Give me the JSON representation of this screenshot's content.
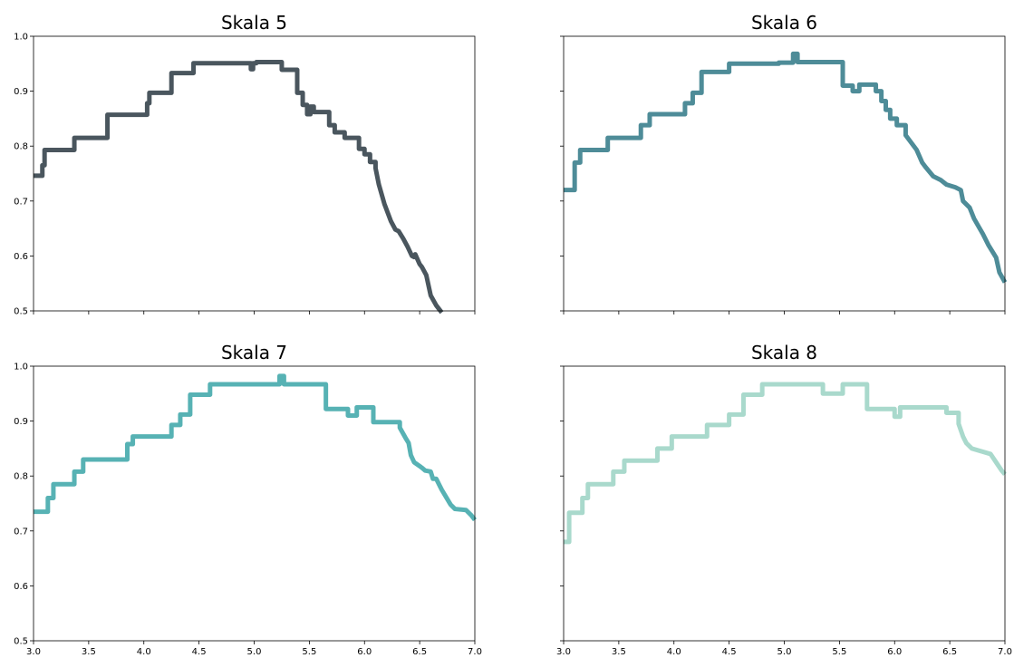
{
  "chart_data": [
    {
      "type": "line",
      "title": "Skala 5",
      "xlim": [
        3.0,
        7.0
      ],
      "ylim": [
        0.5,
        1.0
      ],
      "xticks": [
        "3.0",
        "3.5",
        "4.0",
        "4.5",
        "5.0",
        "5.5",
        "6.0",
        "6.5",
        "7.0"
      ],
      "yticks": [
        "0.5",
        "0.6",
        "0.7",
        "0.8",
        "0.9",
        "1.0"
      ],
      "show_xtick_labels": false,
      "show_ytick_labels": true,
      "color": "#4a565e",
      "series": [
        {
          "x": [
            3.0,
            3.08,
            3.08,
            3.1,
            3.1,
            3.37,
            3.37,
            3.67,
            3.67,
            4.03,
            4.03,
            4.05,
            4.05,
            4.25,
            4.25,
            4.45,
            4.45,
            4.97,
            4.97,
            4.99,
            4.99,
            5.02,
            5.02,
            5.25,
            5.25,
            5.39,
            5.39,
            5.44,
            5.44,
            5.48,
            5.48,
            5.51,
            5.51,
            5.54,
            5.54,
            5.68,
            5.68,
            5.73,
            5.73,
            5.82,
            5.82,
            5.95,
            5.95,
            6.0,
            6.0,
            6.05,
            6.05,
            6.1,
            6.1,
            6.13,
            6.18,
            6.24,
            6.28,
            6.31,
            6.35,
            6.39,
            6.43,
            6.45,
            6.46,
            6.5,
            6.52,
            6.56,
            6.6,
            6.65,
            6.7
          ],
          "y": [
            0.746,
            0.746,
            0.765,
            0.765,
            0.793,
            0.793,
            0.815,
            0.815,
            0.857,
            0.857,
            0.878,
            0.878,
            0.897,
            0.897,
            0.933,
            0.933,
            0.951,
            0.951,
            0.94,
            0.94,
            0.951,
            0.951,
            0.953,
            0.953,
            0.939,
            0.939,
            0.897,
            0.897,
            0.875,
            0.875,
            0.858,
            0.858,
            0.872,
            0.872,
            0.862,
            0.862,
            0.838,
            0.838,
            0.825,
            0.825,
            0.815,
            0.815,
            0.795,
            0.795,
            0.785,
            0.785,
            0.771,
            0.771,
            0.76,
            0.73,
            0.695,
            0.663,
            0.648,
            0.645,
            0.632,
            0.617,
            0.6,
            0.598,
            0.603,
            0.585,
            0.58,
            0.565,
            0.528,
            0.51,
            0.497
          ]
        }
      ]
    },
    {
      "type": "line",
      "title": "Skala 6",
      "xlim": [
        3.0,
        7.0
      ],
      "ylim": [
        0.5,
        1.0
      ],
      "xticks": [
        "3.0",
        "3.5",
        "4.0",
        "4.5",
        "5.0",
        "5.5",
        "6.0",
        "6.5",
        "7.0"
      ],
      "yticks": [
        "0.5",
        "0.6",
        "0.7",
        "0.8",
        "0.9",
        "1.0"
      ],
      "show_xtick_labels": false,
      "show_ytick_labels": false,
      "color": "#4e8c98",
      "series": [
        {
          "x": [
            3.0,
            3.1,
            3.1,
            3.15,
            3.15,
            3.4,
            3.4,
            3.7,
            3.7,
            3.78,
            3.78,
            4.1,
            4.1,
            4.17,
            4.17,
            4.25,
            4.25,
            4.5,
            4.5,
            4.95,
            4.95,
            5.08,
            5.08,
            5.12,
            5.12,
            5.53,
            5.53,
            5.62,
            5.62,
            5.68,
            5.68,
            5.83,
            5.83,
            5.88,
            5.88,
            5.92,
            5.92,
            5.96,
            5.96,
            6.02,
            6.02,
            6.1,
            6.1,
            6.2,
            6.25,
            6.28,
            6.35,
            6.42,
            6.47,
            6.55,
            6.6,
            6.62,
            6.68,
            6.72,
            6.8,
            6.85,
            6.92,
            6.95,
            7.0
          ],
          "y": [
            0.72,
            0.72,
            0.77,
            0.77,
            0.793,
            0.793,
            0.815,
            0.815,
            0.838,
            0.838,
            0.858,
            0.858,
            0.878,
            0.878,
            0.897,
            0.897,
            0.935,
            0.935,
            0.95,
            0.95,
            0.952,
            0.952,
            0.968,
            0.968,
            0.953,
            0.953,
            0.91,
            0.91,
            0.9,
            0.9,
            0.912,
            0.912,
            0.9,
            0.9,
            0.882,
            0.882,
            0.866,
            0.866,
            0.85,
            0.85,
            0.838,
            0.838,
            0.82,
            0.793,
            0.77,
            0.762,
            0.745,
            0.738,
            0.73,
            0.725,
            0.72,
            0.7,
            0.688,
            0.668,
            0.64,
            0.62,
            0.597,
            0.57,
            0.552
          ]
        }
      ]
    },
    {
      "type": "line",
      "title": "Skala 7",
      "xlim": [
        3.0,
        7.0
      ],
      "ylim": [
        0.5,
        1.0
      ],
      "xticks": [
        "3.0",
        "3.5",
        "4.0",
        "4.5",
        "5.0",
        "5.5",
        "6.0",
        "6.5",
        "7.0"
      ],
      "yticks": [
        "0.5",
        "0.6",
        "0.7",
        "0.8",
        "0.9",
        "1.0"
      ],
      "show_xtick_labels": true,
      "show_ytick_labels": true,
      "color": "#57b2b4",
      "series": [
        {
          "x": [
            3.0,
            3.13,
            3.13,
            3.18,
            3.18,
            3.37,
            3.37,
            3.45,
            3.45,
            3.85,
            3.85,
            3.9,
            3.9,
            4.25,
            4.25,
            4.33,
            4.33,
            4.42,
            4.42,
            4.6,
            4.6,
            5.23,
            5.23,
            5.27,
            5.27,
            5.65,
            5.65,
            5.85,
            5.85,
            5.93,
            5.93,
            6.08,
            6.08,
            6.32,
            6.32,
            6.37,
            6.4,
            6.42,
            6.45,
            6.5,
            6.52,
            6.55,
            6.6,
            6.62,
            6.65,
            6.7,
            6.78,
            6.82,
            6.92,
            6.97,
            7.0
          ],
          "y": [
            0.735,
            0.735,
            0.76,
            0.76,
            0.785,
            0.785,
            0.808,
            0.808,
            0.83,
            0.83,
            0.858,
            0.858,
            0.872,
            0.872,
            0.893,
            0.893,
            0.912,
            0.912,
            0.948,
            0.948,
            0.967,
            0.967,
            0.982,
            0.982,
            0.967,
            0.967,
            0.922,
            0.922,
            0.91,
            0.91,
            0.925,
            0.925,
            0.898,
            0.898,
            0.888,
            0.87,
            0.86,
            0.838,
            0.825,
            0.818,
            0.815,
            0.81,
            0.808,
            0.795,
            0.795,
            0.775,
            0.748,
            0.74,
            0.738,
            0.728,
            0.72
          ]
        }
      ]
    },
    {
      "type": "line",
      "title": "Skala 8",
      "xlim": [
        3.0,
        7.0
      ],
      "ylim": [
        0.5,
        1.0
      ],
      "xticks": [
        "3.0",
        "3.5",
        "4.0",
        "4.5",
        "5.0",
        "5.5",
        "6.0",
        "6.5",
        "7.0"
      ],
      "yticks": [
        "0.5",
        "0.6",
        "0.7",
        "0.8",
        "0.9",
        "1.0"
      ],
      "show_xtick_labels": true,
      "show_ytick_labels": false,
      "color": "#a9d9cc",
      "series": [
        {
          "x": [
            3.0,
            3.05,
            3.05,
            3.17,
            3.17,
            3.22,
            3.22,
            3.45,
            3.45,
            3.55,
            3.55,
            3.85,
            3.85,
            3.98,
            3.98,
            4.3,
            4.3,
            4.5,
            4.5,
            4.63,
            4.63,
            4.8,
            4.8,
            5.35,
            5.35,
            5.53,
            5.53,
            5.75,
            5.75,
            6.0,
            6.0,
            6.05,
            6.05,
            6.47,
            6.47,
            6.58,
            6.58,
            6.62,
            6.65,
            6.7,
            6.7,
            6.87,
            6.92,
            6.97,
            7.0
          ],
          "y": [
            0.68,
            0.68,
            0.733,
            0.733,
            0.76,
            0.76,
            0.785,
            0.785,
            0.808,
            0.808,
            0.828,
            0.828,
            0.85,
            0.85,
            0.872,
            0.872,
            0.893,
            0.893,
            0.912,
            0.912,
            0.948,
            0.948,
            0.967,
            0.967,
            0.95,
            0.95,
            0.967,
            0.967,
            0.922,
            0.922,
            0.908,
            0.908,
            0.925,
            0.925,
            0.915,
            0.915,
            0.895,
            0.872,
            0.86,
            0.85,
            0.85,
            0.84,
            0.825,
            0.81,
            0.803
          ]
        }
      ]
    }
  ]
}
